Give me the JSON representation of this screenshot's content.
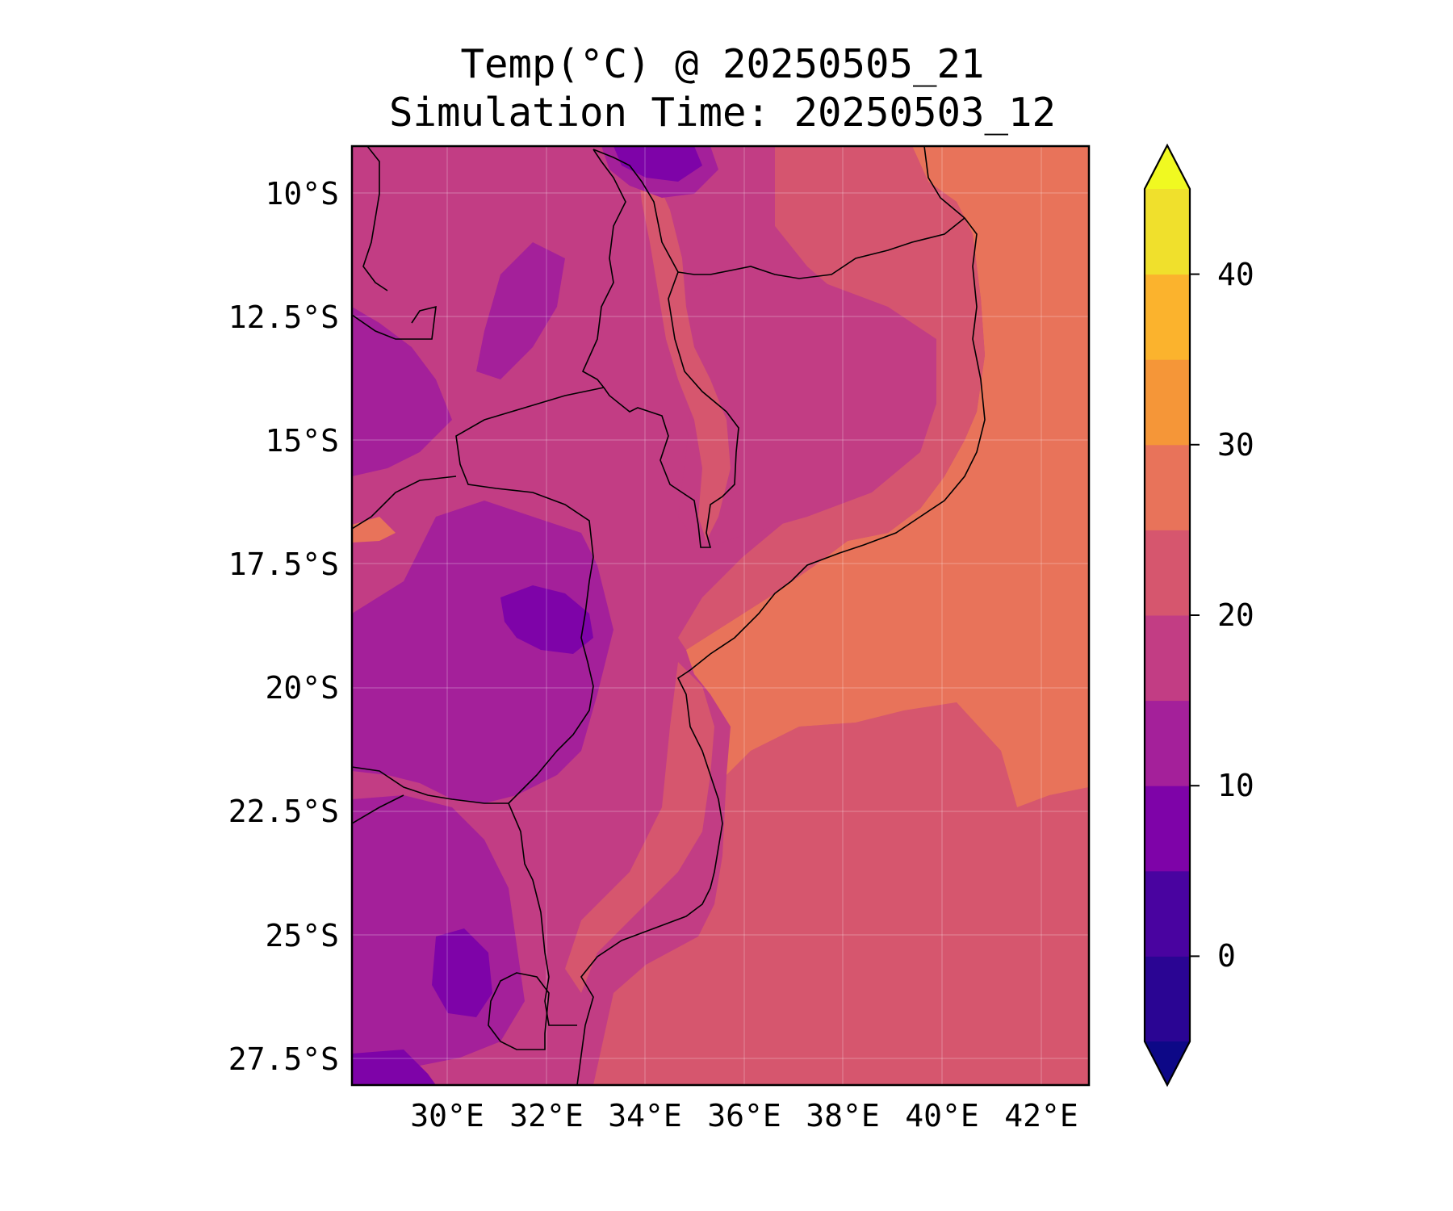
{
  "title": {
    "line1": "Temp(°C) @ 20250505_21",
    "line2": "Simulation Time: 20250503_12"
  },
  "map": {
    "variable": "Temperature",
    "units": "°C",
    "region": "Mozambique and surroundings",
    "lon_range": [
      28.0,
      43.0
    ],
    "lat_range": [
      -28.0,
      -9.0
    ],
    "grid": true,
    "lat_ticks": [
      "10°S",
      "12.5°S",
      "15°S",
      "17.5°S",
      "20°S",
      "22.5°S",
      "25°S",
      "27.5°S"
    ],
    "lon_ticks": [
      "30°E",
      "32°E",
      "34°E",
      "36°E",
      "38°E",
      "40°E",
      "42°E"
    ],
    "ocean_warm_region_color": "#e8735a",
    "ocean_south_color": "#d6566e",
    "land_interior_color": "#c23d84",
    "highland_color": "#a4209a",
    "cold_core_color": "#7e03a8"
  },
  "colorbar": {
    "extend": "both",
    "tick_labels": [
      "0",
      "10",
      "20",
      "30",
      "40"
    ],
    "tick_values": [
      0,
      10,
      20,
      30,
      40
    ],
    "levels": [
      -5,
      0,
      5,
      10,
      15,
      20,
      25,
      30,
      35,
      40,
      45
    ],
    "colors": [
      "#0d0887",
      "#2a0593",
      "#4903a0",
      "#7e03a8",
      "#a4209a",
      "#c23d84",
      "#d6566e",
      "#e8735a",
      "#f59638",
      "#fbb32d",
      "#f0e02c",
      "#f0f921"
    ]
  }
}
